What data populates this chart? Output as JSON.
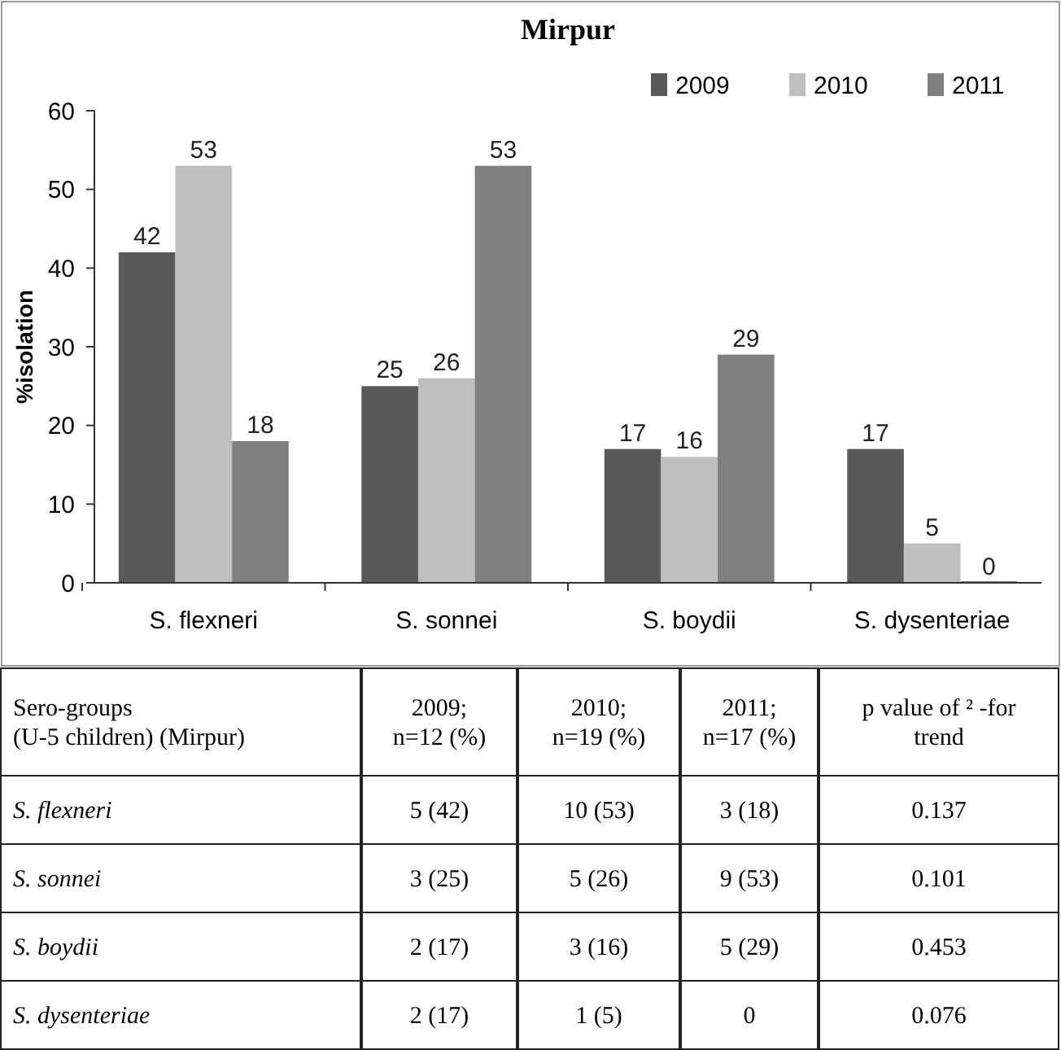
{
  "chart_data": [
    {
      "type": "bar",
      "title": "Mirpur",
      "ylabel": "%isolation",
      "categories": [
        "S. flexneri",
        "S. sonnei",
        "S. boydii",
        "S. dysenteriae"
      ],
      "series": [
        {
          "name": "2009",
          "color": "#595959",
          "values": [
            42,
            25,
            17,
            17
          ]
        },
        {
          "name": "2010",
          "color": "#bfbfbf",
          "values": [
            53,
            26,
            16,
            5
          ]
        },
        {
          "name": "2011",
          "color": "#808080",
          "values": [
            18,
            53,
            29,
            0
          ]
        }
      ],
      "ylim": [
        0,
        60
      ],
      "yticks": [
        0,
        10,
        20,
        30,
        40,
        50,
        60
      ],
      "grid": false,
      "legend": "top right",
      "data_labels": true
    },
    {
      "type": "other",
      "annotations": [
        "Sero-groups\n(U-5 children) (Mirpur)",
        "2009;\nn=12 (%)",
        "2010;\nn=19 (%)",
        "2011;\nn=17 (%)",
        "p value of ² -for\ntrend",
        "S. flexneri",
        "5 (42)",
        "10 (53)",
        "3 (18)",
        "0.137",
        "S. sonnei",
        "3 (25)",
        "5 (26)",
        "9 (53)",
        "0.101",
        "S. boydii",
        "2 (17)",
        "3 (16)",
        "5 (29)",
        "0.453",
        "S. dysenteriae",
        "2 (17)",
        "1 (5)",
        "0",
        "0.076"
      ]
    }
  ]
}
